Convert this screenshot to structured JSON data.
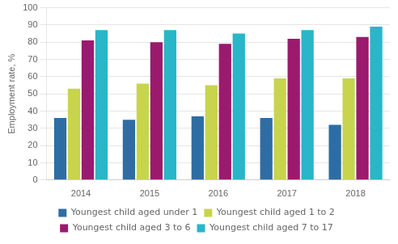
{
  "chart_data": {
    "type": "bar",
    "ylabel": "Employment rate, %",
    "categories": [
      "2014",
      "2015",
      "2016",
      "2017",
      "2018"
    ],
    "series": [
      {
        "name": "Youngest child aged under 1",
        "color": "#2e6da4",
        "values": [
          36,
          35,
          37,
          36,
          32
        ]
      },
      {
        "name": "Youngest child aged 1 to 2",
        "color": "#c8d44e",
        "values": [
          53,
          56,
          55,
          59,
          59
        ]
      },
      {
        "name": "Youngest child aged 3 to 6",
        "color": "#9b1a6e",
        "values": [
          81,
          80,
          79,
          82,
          83
        ]
      },
      {
        "name": "Youngest child aged 7 to 17",
        "color": "#2ab5c8",
        "values": [
          87,
          87,
          85,
          87,
          89
        ]
      }
    ],
    "ylim": [
      0,
      100
    ],
    "yticks": [
      0,
      10,
      20,
      30,
      40,
      50,
      60,
      70,
      80,
      90,
      100
    ],
    "grid": true,
    "legend": "bottom"
  }
}
